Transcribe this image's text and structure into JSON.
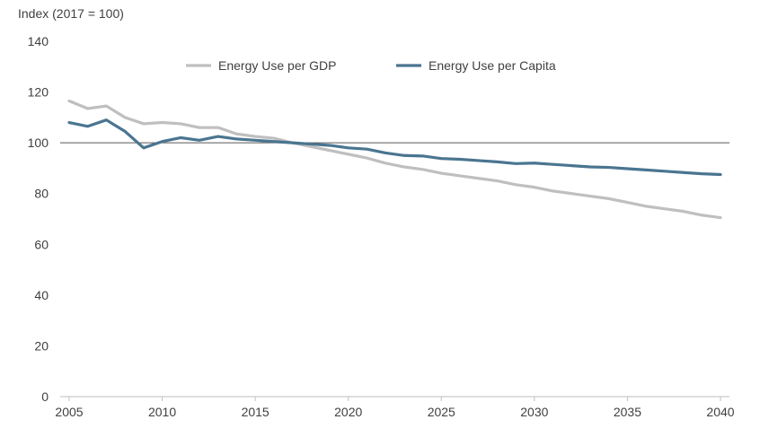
{
  "chart_data": {
    "type": "line",
    "ylabel": "Index (2017 = 100)",
    "xlim": [
      2005,
      2040
    ],
    "ylim": [
      0,
      140
    ],
    "x_ticks": [
      "2005",
      "2010",
      "2015",
      "2020",
      "2025",
      "2030",
      "2035",
      "2040"
    ],
    "y_ticks": [
      "0",
      "20",
      "40",
      "60",
      "80",
      "100",
      "120",
      "140"
    ],
    "reference_line": 100,
    "grid": false,
    "legend_position": "top",
    "x": [
      2005,
      2006,
      2007,
      2008,
      2009,
      2010,
      2011,
      2012,
      2013,
      2014,
      2015,
      2016,
      2017,
      2018,
      2019,
      2020,
      2021,
      2022,
      2023,
      2024,
      2025,
      2026,
      2027,
      2028,
      2029,
      2030,
      2031,
      2032,
      2033,
      2034,
      2035,
      2036,
      2037,
      2038,
      2039,
      2040
    ],
    "series": [
      {
        "name": "Energy Use per GDP",
        "color": "#bfbfbf",
        "values": [
          116.5,
          113.5,
          114.5,
          110.0,
          107.5,
          108.0,
          107.5,
          106.0,
          106.0,
          103.5,
          102.5,
          101.8,
          100.0,
          98.5,
          97.0,
          95.5,
          94.0,
          92.0,
          90.5,
          89.5,
          88.0,
          87.0,
          86.0,
          85.0,
          83.5,
          82.5,
          81.0,
          80.0,
          79.0,
          78.0,
          76.5,
          75.0,
          74.0,
          73.0,
          71.5,
          70.5
        ]
      },
      {
        "name": "Energy Use per Capita",
        "color": "#4a7590",
        "values": [
          108.0,
          106.5,
          109.0,
          104.5,
          98.0,
          100.5,
          102.0,
          101.0,
          102.5,
          101.5,
          101.0,
          100.5,
          100.0,
          99.5,
          99.0,
          98.0,
          97.5,
          96.0,
          95.0,
          94.8,
          93.8,
          93.5,
          93.0,
          92.5,
          91.8,
          92.0,
          91.5,
          91.0,
          90.5,
          90.3,
          89.8,
          89.3,
          88.8,
          88.3,
          87.8,
          87.5
        ]
      }
    ]
  }
}
